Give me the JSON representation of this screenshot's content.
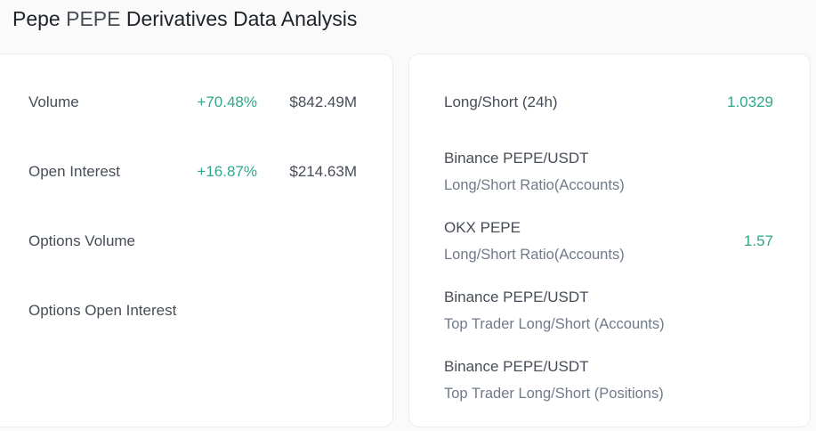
{
  "header": {
    "name": "Pepe",
    "symbol": "PEPE",
    "title_rest": "Derivatives Data Analysis"
  },
  "left_panel": {
    "rows": [
      {
        "label": "Volume",
        "change": "+70.48%",
        "amount": "$842.49M"
      },
      {
        "label": "Open Interest",
        "change": "+16.87%",
        "amount": "$214.63M"
      },
      {
        "label": "Options Volume",
        "change": "",
        "amount": ""
      },
      {
        "label": "Options Open Interest",
        "change": "",
        "amount": ""
      }
    ]
  },
  "right_panel": {
    "rows": [
      {
        "line1": "Long/Short (24h)",
        "line2": "",
        "value": "1.0329"
      },
      {
        "line1": "Binance PEPE/USDT",
        "line2": "Long/Short Ratio(Accounts)",
        "value": ""
      },
      {
        "line1": "OKX PEPE",
        "line2": "Long/Short Ratio(Accounts)",
        "value": "1.57"
      },
      {
        "line1": "Binance PEPE/USDT",
        "line2": "Top Trader Long/Short (Accounts)",
        "value": ""
      },
      {
        "line1": "Binance PEPE/USDT",
        "line2": "Top Trader Long/Short (Positions)",
        "value": ""
      }
    ]
  },
  "colors": {
    "positive": "#2fa78a",
    "text_primary": "#1e2329",
    "text_secondary": "#474d57",
    "text_muted": "#707a8a"
  }
}
